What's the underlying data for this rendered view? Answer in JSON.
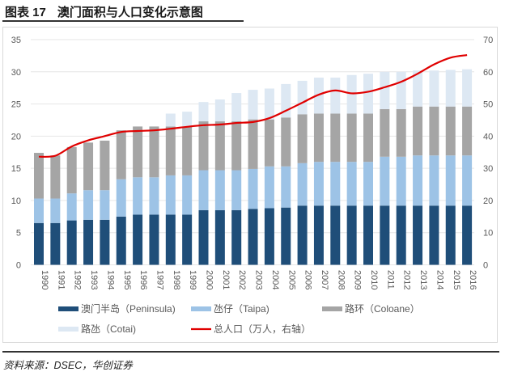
{
  "title": {
    "figure_no": "图表 17",
    "text": "澳门面积与人口变化示意图"
  },
  "source": "资料来源：DSEC，华创证券",
  "chart_data": {
    "type": "bar",
    "stacked": true,
    "categories": [
      "1990",
      "1991",
      "1992",
      "1993",
      "1994",
      "1995",
      "1996",
      "1997",
      "1998",
      "1999",
      "2000",
      "2001",
      "2002",
      "2003",
      "2004",
      "2005",
      "2006",
      "2007",
      "2008",
      "2009",
      "2010",
      "2011",
      "2012",
      "2013",
      "2014",
      "2015",
      "2016"
    ],
    "series": [
      {
        "name": "澳门半岛（Peninsula)",
        "type": "bar",
        "axis": "left",
        "color": "#1f4e79",
        "values": [
          6.5,
          6.5,
          6.9,
          7.0,
          7.0,
          7.5,
          7.8,
          7.8,
          7.8,
          7.8,
          8.5,
          8.5,
          8.5,
          8.7,
          8.8,
          8.9,
          9.2,
          9.2,
          9.2,
          9.2,
          9.2,
          9.2,
          9.2,
          9.2,
          9.2,
          9.2,
          9.2
        ]
      },
      {
        "name": "氹仔（Taipa)",
        "type": "bar",
        "axis": "left",
        "color": "#9dc3e6",
        "values": [
          3.8,
          3.8,
          4.2,
          4.6,
          4.6,
          5.8,
          5.8,
          5.8,
          6.1,
          6.1,
          6.2,
          6.2,
          6.2,
          6.2,
          6.5,
          6.4,
          6.6,
          6.8,
          6.8,
          6.8,
          6.8,
          7.6,
          7.6,
          7.8,
          7.8,
          7.8,
          7.8
        ]
      },
      {
        "name": "路环（Coloane）",
        "type": "bar",
        "axis": "left",
        "color": "#a5a5a5",
        "values": [
          7.1,
          6.7,
          7.2,
          7.4,
          7.7,
          7.6,
          7.9,
          7.9,
          7.6,
          7.6,
          7.6,
          7.6,
          7.6,
          7.7,
          7.3,
          7.6,
          7.6,
          7.5,
          7.5,
          7.5,
          7.5,
          7.4,
          7.4,
          7.6,
          7.6,
          7.6,
          7.6
        ]
      },
      {
        "name": "路氹（Cotai)",
        "type": "bar",
        "axis": "left",
        "color": "#dde8f3",
        "values": [
          0,
          0,
          0,
          0,
          0,
          0,
          0,
          0,
          2.0,
          2.3,
          3.0,
          3.4,
          4.4,
          4.6,
          4.8,
          5.2,
          5.2,
          5.6,
          5.6,
          6.0,
          6.2,
          5.8,
          5.8,
          5.6,
          5.6,
          5.7,
          5.8
        ]
      },
      {
        "name": "总人口（万人，右轴）",
        "type": "line",
        "axis": "right",
        "color": "#e00000",
        "values": [
          33.6,
          33.9,
          36.8,
          38.7,
          40.0,
          41.3,
          41.6,
          41.8,
          42.3,
          42.9,
          43.4,
          43.6,
          44.1,
          44.4,
          45.6,
          47.9,
          50.4,
          52.9,
          54.2,
          53.3,
          53.8,
          55.2,
          56.9,
          59.4,
          62.3,
          64.4,
          65.2
        ]
      }
    ],
    "y_left": {
      "range": [
        0,
        35
      ],
      "ticks": [
        "0",
        "5",
        "10",
        "15",
        "20",
        "25",
        "30",
        "35"
      ]
    },
    "y_right": {
      "range": [
        0,
        70
      ],
      "ticks": [
        "0",
        "10",
        "20",
        "30",
        "40",
        "50",
        "60",
        "70"
      ]
    },
    "grid": true,
    "legend_position": "bottom"
  }
}
